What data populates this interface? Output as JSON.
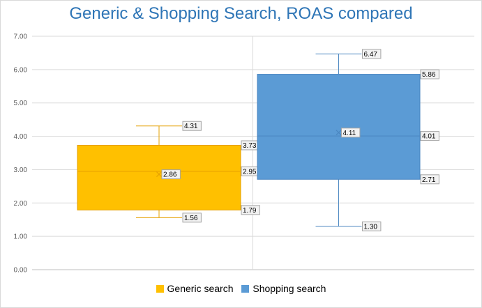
{
  "chart_data": {
    "type": "box",
    "title": "Generic & Shopping Search, ROAS compared",
    "ylim": [
      0,
      7
    ],
    "y_ticks": [
      "0.00",
      "1.00",
      "2.00",
      "3.00",
      "4.00",
      "5.00",
      "6.00",
      "7.00"
    ],
    "grid": true,
    "legend_position": "bottom",
    "series": [
      {
        "name": "Generic search",
        "color": "#ffc000",
        "border": "#e6a000",
        "min": 1.56,
        "q1": 1.79,
        "median": 2.95,
        "mean": 2.86,
        "q3": 3.73,
        "max": 4.31,
        "labels": {
          "min": "1.56",
          "q1": "1.79",
          "median": "2.95",
          "mean": "2.86",
          "q3": "3.73",
          "max": "4.31"
        }
      },
      {
        "name": "Shopping search",
        "color": "#5b9bd5",
        "border": "#4a86c0",
        "min": 1.3,
        "q1": 2.71,
        "median": 4.01,
        "mean": 4.11,
        "q3": 5.86,
        "max": 6.47,
        "labels": {
          "min": "1.30",
          "q1": "2.71",
          "median": "4.01",
          "mean": "4.11",
          "q3": "5.86",
          "max": "6.47"
        }
      }
    ]
  }
}
